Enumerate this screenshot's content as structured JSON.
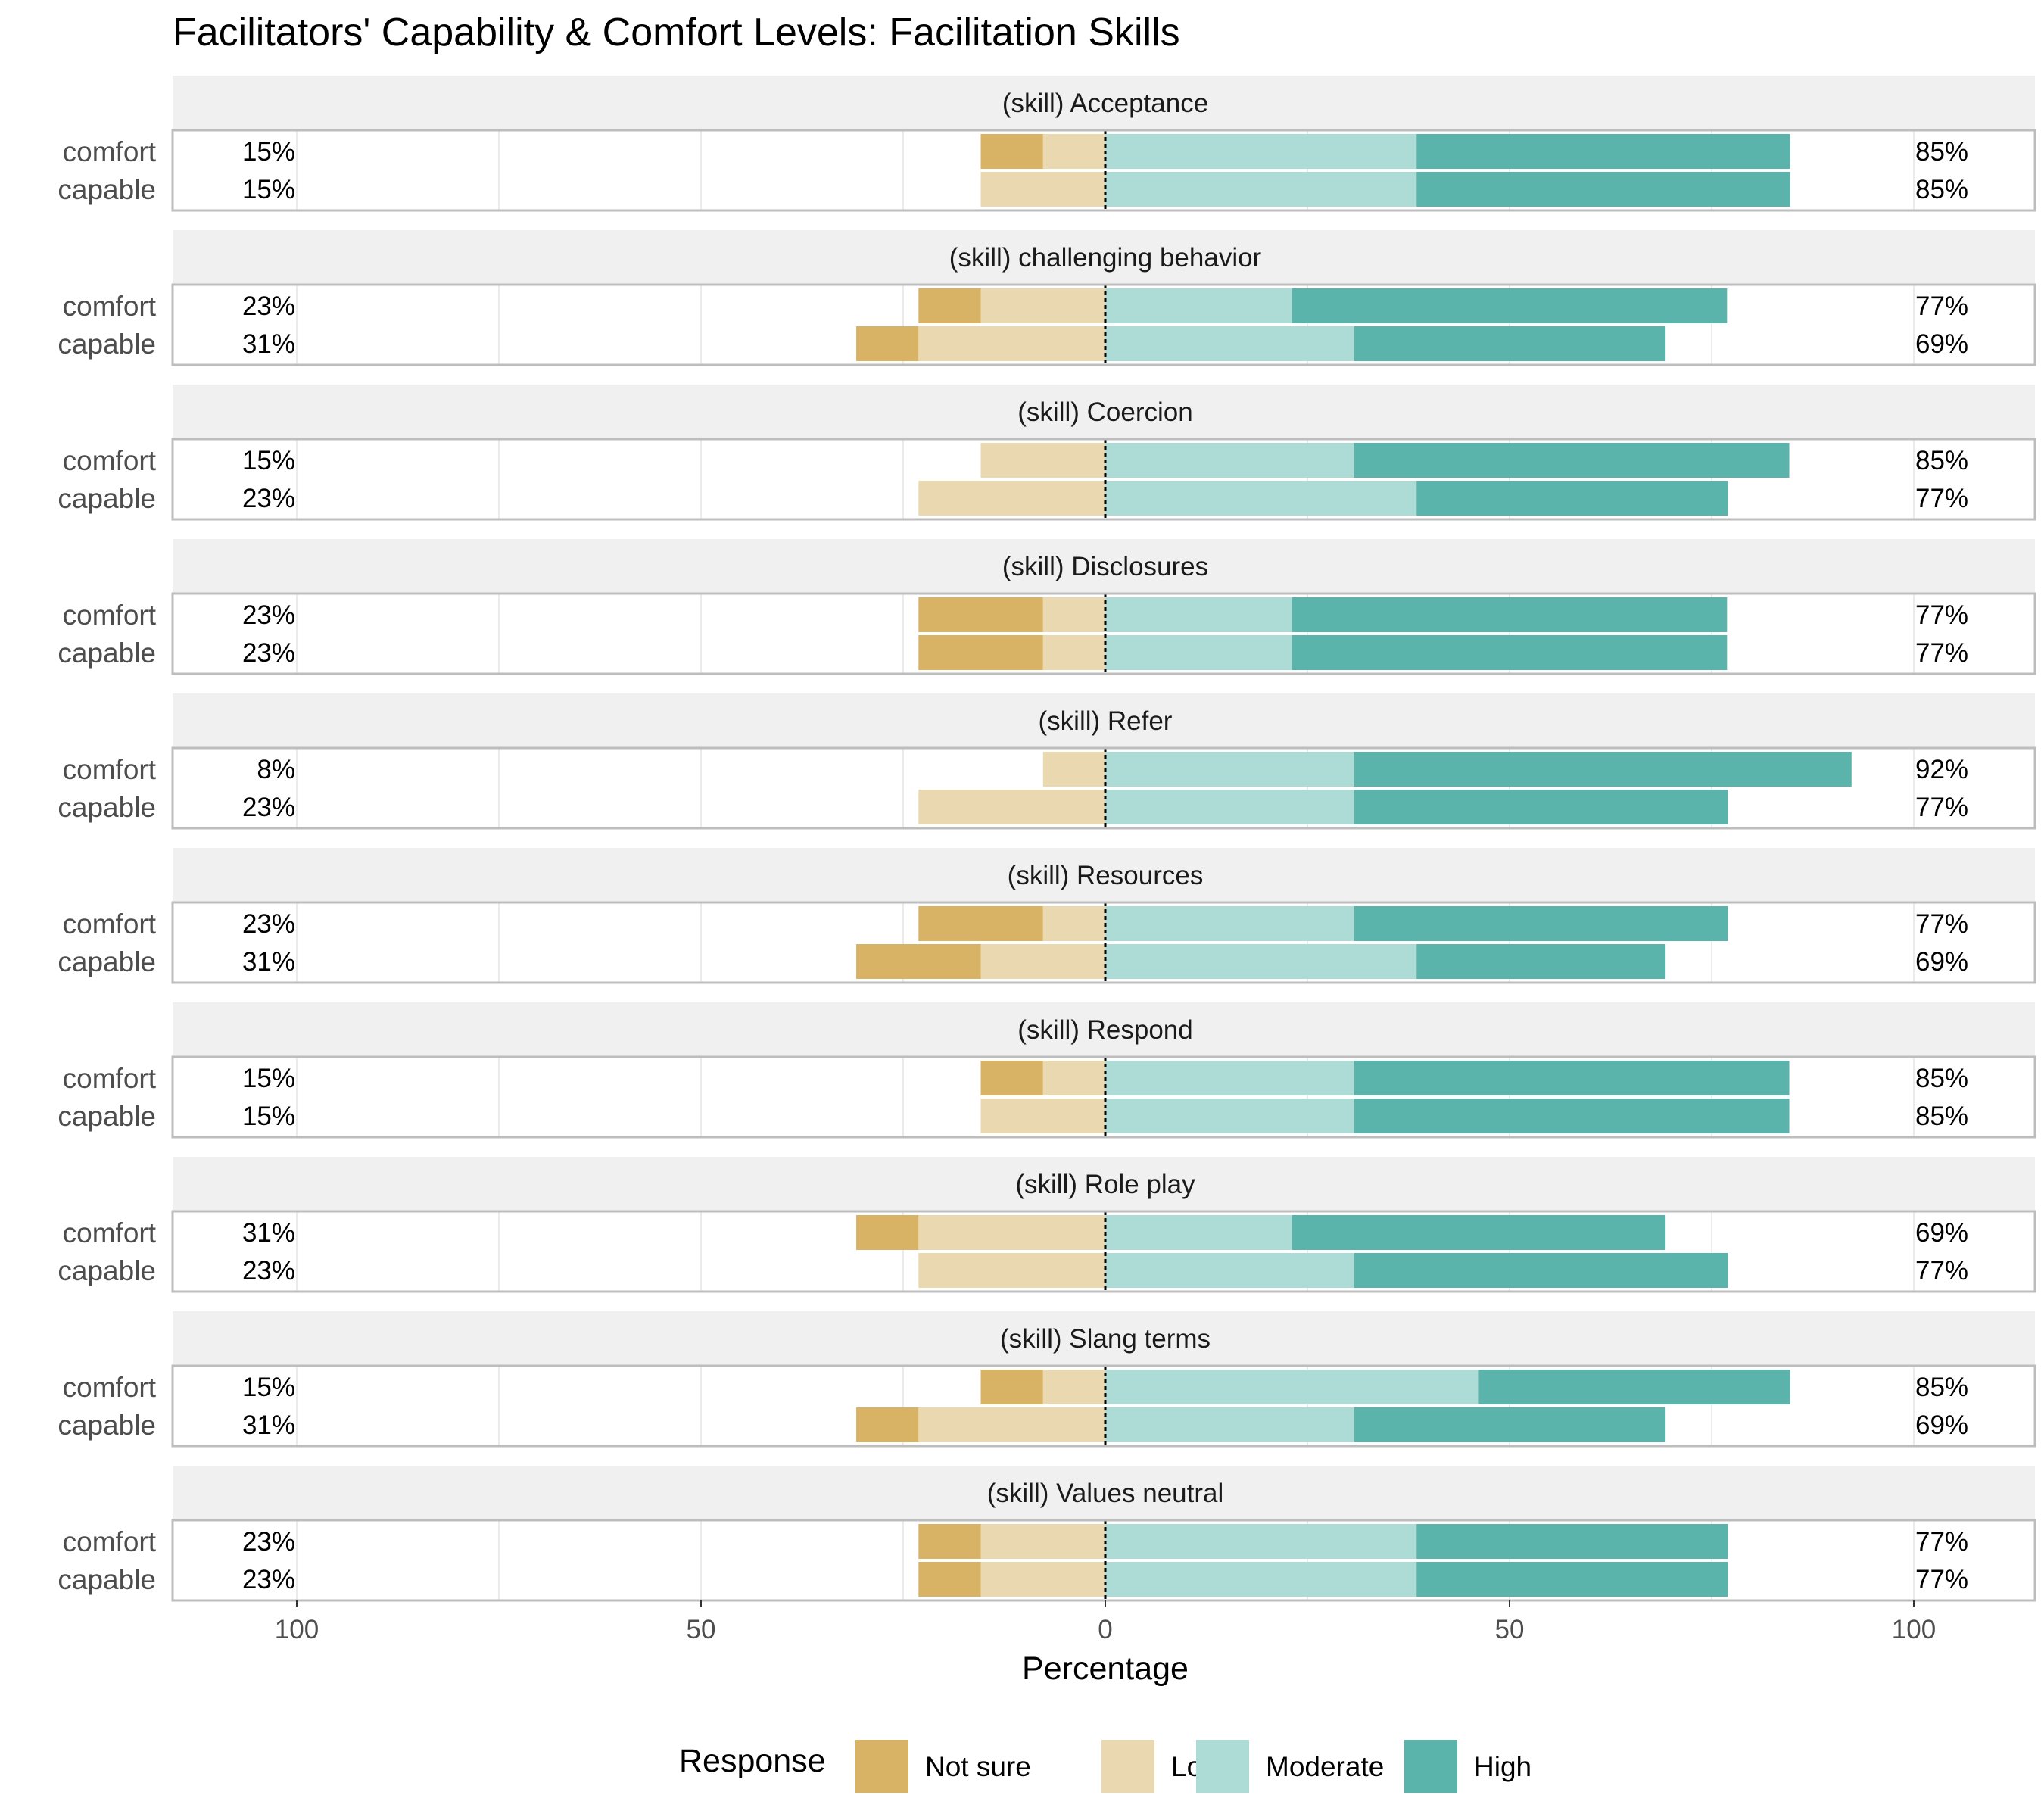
{
  "chart_data": {
    "type": "bar",
    "subtype": "diverging-stacked-horizontal",
    "title": "Facilitators' Capability & Comfort Levels: Facilitation Skills",
    "xlabel": "Percentage",
    "xlim": [
      -115,
      115
    ],
    "x_ticks": [
      {
        "value": -100,
        "label": "100"
      },
      {
        "value": -50,
        "label": "50"
      },
      {
        "value": 0,
        "label": "0"
      },
      {
        "value": 50,
        "label": "50"
      },
      {
        "value": 100,
        "label": "100"
      }
    ],
    "grid": true,
    "legend": {
      "title": "Response",
      "position": "bottom",
      "entries": [
        {
          "name": "Not sure",
          "color": "#d8b365"
        },
        {
          "name": "Low",
          "color": "#ead8b0"
        },
        {
          "name": "Moderate",
          "color": "#addbd6"
        },
        {
          "name": "High",
          "color": "#5ab4ac"
        }
      ]
    },
    "series_order_negative": [
      "Low",
      "Not sure"
    ],
    "series_order_positive": [
      "Moderate",
      "High"
    ],
    "facets": [
      {
        "label": "(skill) Acceptance",
        "rows": [
          {
            "label": "comfort",
            "not_sure": 7.7,
            "low": 7.7,
            "moderate": 38.5,
            "high": 46.2,
            "left_label": "15%",
            "right_label": "85%"
          },
          {
            "label": "capable",
            "not_sure": 0,
            "low": 15.4,
            "moderate": 38.5,
            "high": 46.2,
            "left_label": "15%",
            "right_label": "85%"
          }
        ]
      },
      {
        "label": "(skill) challenging behavior",
        "rows": [
          {
            "label": "comfort",
            "not_sure": 7.7,
            "low": 15.4,
            "moderate": 23.1,
            "high": 53.8,
            "left_label": "23%",
            "right_label": "77%"
          },
          {
            "label": "capable",
            "not_sure": 7.7,
            "low": 23.1,
            "moderate": 30.8,
            "high": 38.5,
            "left_label": "31%",
            "right_label": "69%"
          }
        ]
      },
      {
        "label": "(skill) Coercion",
        "rows": [
          {
            "label": "comfort",
            "not_sure": 0,
            "low": 15.4,
            "moderate": 30.8,
            "high": 53.8,
            "left_label": "15%",
            "right_label": "85%"
          },
          {
            "label": "capable",
            "not_sure": 0,
            "low": 23.1,
            "moderate": 38.5,
            "high": 38.5,
            "left_label": "23%",
            "right_label": "77%"
          }
        ]
      },
      {
        "label": "(skill) Disclosures",
        "rows": [
          {
            "label": "comfort",
            "not_sure": 15.4,
            "low": 7.7,
            "moderate": 23.1,
            "high": 53.8,
            "left_label": "23%",
            "right_label": "77%"
          },
          {
            "label": "capable",
            "not_sure": 15.4,
            "low": 7.7,
            "moderate": 23.1,
            "high": 53.8,
            "left_label": "23%",
            "right_label": "77%"
          }
        ]
      },
      {
        "label": "(skill) Refer",
        "rows": [
          {
            "label": "comfort",
            "not_sure": 0,
            "low": 7.7,
            "moderate": 30.8,
            "high": 61.5,
            "left_label": "8%",
            "right_label": "92%"
          },
          {
            "label": "capable",
            "not_sure": 0,
            "low": 23.1,
            "moderate": 30.8,
            "high": 46.2,
            "left_label": "23%",
            "right_label": "77%"
          }
        ]
      },
      {
        "label": "(skill) Resources",
        "rows": [
          {
            "label": "comfort",
            "not_sure": 15.4,
            "low": 7.7,
            "moderate": 30.8,
            "high": 46.2,
            "left_label": "23%",
            "right_label": "77%"
          },
          {
            "label": "capable",
            "not_sure": 15.4,
            "low": 15.4,
            "moderate": 38.5,
            "high": 30.8,
            "left_label": "31%",
            "right_label": "69%"
          }
        ]
      },
      {
        "label": "(skill) Respond",
        "rows": [
          {
            "label": "comfort",
            "not_sure": 7.7,
            "low": 7.7,
            "moderate": 30.8,
            "high": 53.8,
            "left_label": "15%",
            "right_label": "85%"
          },
          {
            "label": "capable",
            "not_sure": 0,
            "low": 15.4,
            "moderate": 30.8,
            "high": 53.8,
            "left_label": "15%",
            "right_label": "85%"
          }
        ]
      },
      {
        "label": "(skill) Role play",
        "rows": [
          {
            "label": "comfort",
            "not_sure": 7.7,
            "low": 23.1,
            "moderate": 23.1,
            "high": 46.2,
            "left_label": "31%",
            "right_label": "69%"
          },
          {
            "label": "capable",
            "not_sure": 0,
            "low": 23.1,
            "moderate": 30.8,
            "high": 46.2,
            "left_label": "23%",
            "right_label": "77%"
          }
        ]
      },
      {
        "label": "(skill) Slang terms",
        "rows": [
          {
            "label": "comfort",
            "not_sure": 7.7,
            "low": 7.7,
            "moderate": 46.2,
            "high": 38.5,
            "left_label": "15%",
            "right_label": "85%"
          },
          {
            "label": "capable",
            "not_sure": 7.7,
            "low": 23.1,
            "moderate": 30.8,
            "high": 38.5,
            "left_label": "31%",
            "right_label": "69%"
          }
        ]
      },
      {
        "label": "(skill) Values neutral",
        "rows": [
          {
            "label": "comfort",
            "not_sure": 7.7,
            "low": 15.4,
            "moderate": 38.5,
            "high": 38.5,
            "left_label": "23%",
            "right_label": "77%"
          },
          {
            "label": "capable",
            "not_sure": 7.7,
            "low": 15.4,
            "moderate": 38.5,
            "high": 38.5,
            "left_label": "23%",
            "right_label": "77%"
          }
        ]
      }
    ]
  }
}
